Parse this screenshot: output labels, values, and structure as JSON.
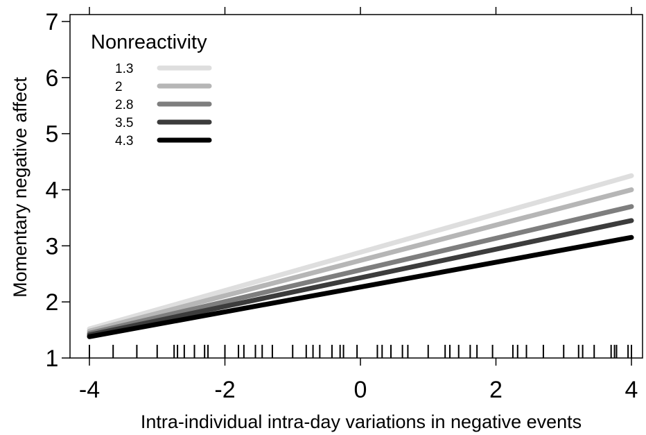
{
  "chart_data": {
    "type": "line",
    "xlabel": "Intra-individual intra-day variations in negative events",
    "ylabel": "Momentary negative affect",
    "xlim": [
      -4,
      4
    ],
    "ylim": [
      1,
      7
    ],
    "xticks": [
      -4,
      -2,
      0,
      2,
      4
    ],
    "xtick_labels": [
      "-4",
      "-2",
      "0",
      "2",
      "4"
    ],
    "yticks": [
      1,
      2,
      3,
      4,
      5,
      6,
      7
    ],
    "ytick_labels": [
      "1",
      "2",
      "3",
      "4",
      "5",
      "6",
      "7"
    ],
    "grid": false,
    "legend": {
      "title": "Nonreactivity",
      "placement": "top-left"
    },
    "series": [
      {
        "name": "1.3",
        "color": "#dedede",
        "x": [
          -4,
          4
        ],
        "y": [
          1.52,
          4.25
        ]
      },
      {
        "name": "2",
        "color": "#b6b6b6",
        "x": [
          -4,
          4
        ],
        "y": [
          1.48,
          4.0
        ]
      },
      {
        "name": "2.8",
        "color": "#7e7e7e",
        "x": [
          -4,
          4
        ],
        "y": [
          1.44,
          3.7
        ]
      },
      {
        "name": "3.5",
        "color": "#3c3c3c",
        "x": [
          -4,
          4
        ],
        "y": [
          1.41,
          3.45
        ]
      },
      {
        "name": "4.3",
        "color": "#000000",
        "x": [
          -4,
          4
        ],
        "y": [
          1.38,
          3.15
        ]
      }
    ],
    "rug": [
      -4,
      -3.65,
      -3.3,
      -3.0,
      -2.75,
      -2.7,
      -2.6,
      -2.45,
      -2.3,
      -2.25,
      -2.0,
      -1.8,
      -1.72,
      -1.55,
      -1.45,
      -1.3,
      -1.0,
      -0.8,
      -0.7,
      -0.6,
      -0.42,
      -0.3,
      -0.25,
      -0.05,
      0.25,
      0.32,
      0.45,
      0.62,
      0.7,
      1.0,
      1.25,
      1.32,
      1.45,
      1.62,
      1.72,
      1.95,
      2.25,
      2.32,
      2.45,
      2.7,
      3.0,
      3.22,
      3.28,
      3.45,
      3.7,
      3.75,
      3.78,
      3.95,
      4.0
    ]
  }
}
